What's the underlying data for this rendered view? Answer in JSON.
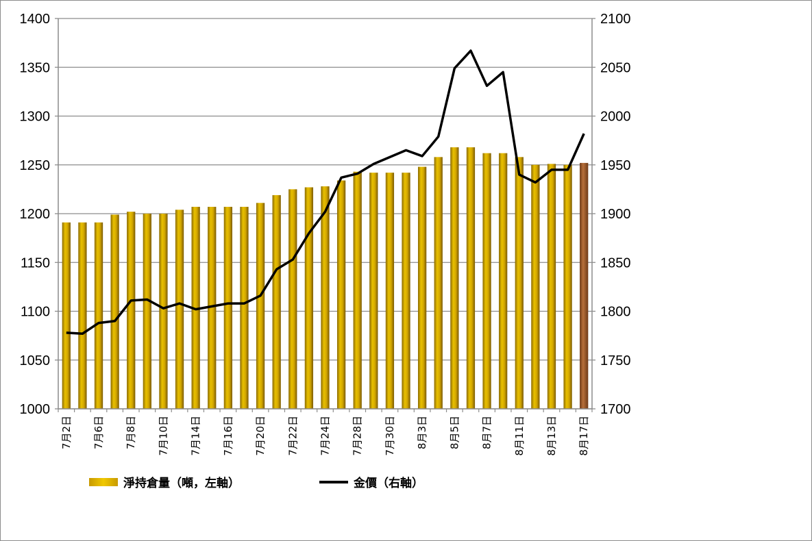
{
  "chart_data": {
    "type": "bar",
    "left_axis": {
      "min": 1000,
      "max": 1400,
      "ticks": [
        "1000",
        "1050",
        "1100",
        "1150",
        "1200",
        "1250",
        "1300",
        "1350",
        "1400"
      ]
    },
    "right_axis": {
      "min": 1700,
      "max": 2100,
      "ticks": [
        "1700",
        "1750",
        "1800",
        "1850",
        "1900",
        "1950",
        "2000",
        "2050",
        "2100"
      ]
    },
    "x_labels": [
      "7月2日",
      "7月6日",
      "7月8日",
      "7月10日",
      "7月14日",
      "7月16日",
      "7月20日",
      "7月22日",
      "7月24日",
      "7月28日",
      "7月30日",
      "8月3日",
      "8月5日",
      "8月7日",
      "8月11日",
      "8月13日",
      "8月17日"
    ],
    "x_label_every": 2,
    "series": [
      {
        "name": "淨持倉量（噸，左軸）",
        "kind": "bar",
        "axis": "left",
        "color": "#c8a000",
        "highlight_last_color": "#a05a2c",
        "values": [
          1191,
          1191,
          1191,
          1199,
          1202,
          1200,
          1200,
          1204,
          1207,
          1207,
          1207,
          1207,
          1211,
          1219,
          1225,
          1227,
          1228,
          1234,
          1243,
          1242,
          1242,
          1242,
          1248,
          1258,
          1268,
          1268,
          1262,
          1262,
          1258,
          1250,
          1251,
          1250,
          1252
        ]
      },
      {
        "name": "金價（右軸）",
        "kind": "line",
        "axis": "right",
        "color": "#000000",
        "values": [
          1778,
          1777,
          1788,
          1790,
          1811,
          1812,
          1803,
          1808,
          1802,
          1805,
          1808,
          1808,
          1816,
          1843,
          1853,
          1880,
          1902,
          1937,
          1941,
          1951,
          1958,
          1965,
          1959,
          1979,
          2049,
          2067,
          2031,
          2045,
          1940,
          1932,
          1945,
          1945,
          1982
        ]
      }
    ],
    "legend_position": "bottom-left",
    "grid": true
  }
}
